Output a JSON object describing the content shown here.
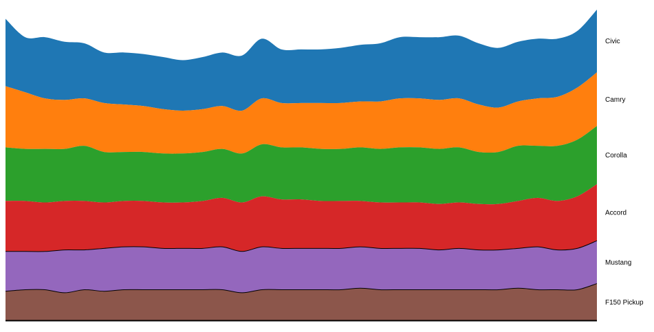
{
  "chart_data": {
    "type": "area",
    "stacked": true,
    "title": "",
    "xlabel": "",
    "ylabel": "",
    "legend_position": "right",
    "grid": false,
    "x": [
      0,
      1,
      2,
      3,
      4,
      5,
      6,
      7,
      8,
      9,
      10,
      11,
      12,
      13,
      14,
      15,
      16,
      17,
      18,
      19,
      20,
      21,
      22,
      23,
      24,
      25,
      26,
      27,
      28,
      29,
      30
    ],
    "series": [
      {
        "name": "F150 Pickup",
        "color": "#8c564b",
        "outline": true,
        "values": [
          9.5,
          10,
          10,
          9,
          10,
          9.5,
          10,
          10,
          10,
          10,
          10,
          10,
          9,
          10,
          10,
          10,
          10,
          10,
          10.5,
          10,
          10,
          10,
          10,
          10,
          10,
          10,
          10.5,
          10,
          10,
          10,
          12
        ]
      },
      {
        "name": "Mustang",
        "color": "#9467bd",
        "outline": true,
        "values": [
          13,
          12.5,
          12.5,
          14,
          13,
          14,
          14,
          14,
          13.5,
          13.5,
          13.5,
          14,
          13.5,
          14,
          13.5,
          13.5,
          13.5,
          13.5,
          13.5,
          13.5,
          13.5,
          13.5,
          13,
          13.5,
          13,
          13,
          13,
          14,
          13,
          13.5,
          14
        ]
      },
      {
        "name": "Accord",
        "color": "#d62728",
        "values": [
          16.5,
          16.5,
          16,
          16,
          16,
          15,
          15,
          15,
          15,
          15,
          15.5,
          16,
          16,
          16.5,
          16,
          16,
          15.5,
          15.5,
          15,
          15,
          15,
          15,
          15,
          15,
          15,
          15,
          15.5,
          16,
          16,
          17,
          18.5
        ]
      },
      {
        "name": "Corolla",
        "color": "#2ca02c",
        "values": [
          17.5,
          17,
          17.5,
          17,
          18,
          16.5,
          16,
          16,
          16,
          16,
          16,
          16,
          16,
          17,
          17,
          17,
          17,
          17,
          17.5,
          17.5,
          18,
          18,
          18,
          18,
          17,
          17,
          18,
          17,
          18,
          18.5,
          19
        ]
      },
      {
        "name": "Camry",
        "color": "#ff7f0e",
        "values": [
          20,
          18.5,
          16.5,
          16,
          15.5,
          16,
          15.5,
          15,
          14.5,
          14,
          14,
          14,
          14,
          15,
          14.5,
          14.5,
          15,
          15,
          15,
          15.5,
          16,
          16,
          16,
          16,
          15.5,
          14.5,
          14.5,
          15.5,
          16,
          17,
          17.5
        ]
      },
      {
        "name": "Civic",
        "color": "#1f77b4",
        "values": [
          22,
          18,
          20,
          19,
          18,
          16.5,
          17,
          17,
          17,
          16.5,
          17,
          17.5,
          18,
          19.5,
          17.5,
          17.5,
          17.5,
          18,
          18.5,
          19,
          20,
          20,
          20.5,
          20.5,
          20,
          19.5,
          19.5,
          19.5,
          19,
          18.5,
          20.5
        ]
      }
    ]
  }
}
